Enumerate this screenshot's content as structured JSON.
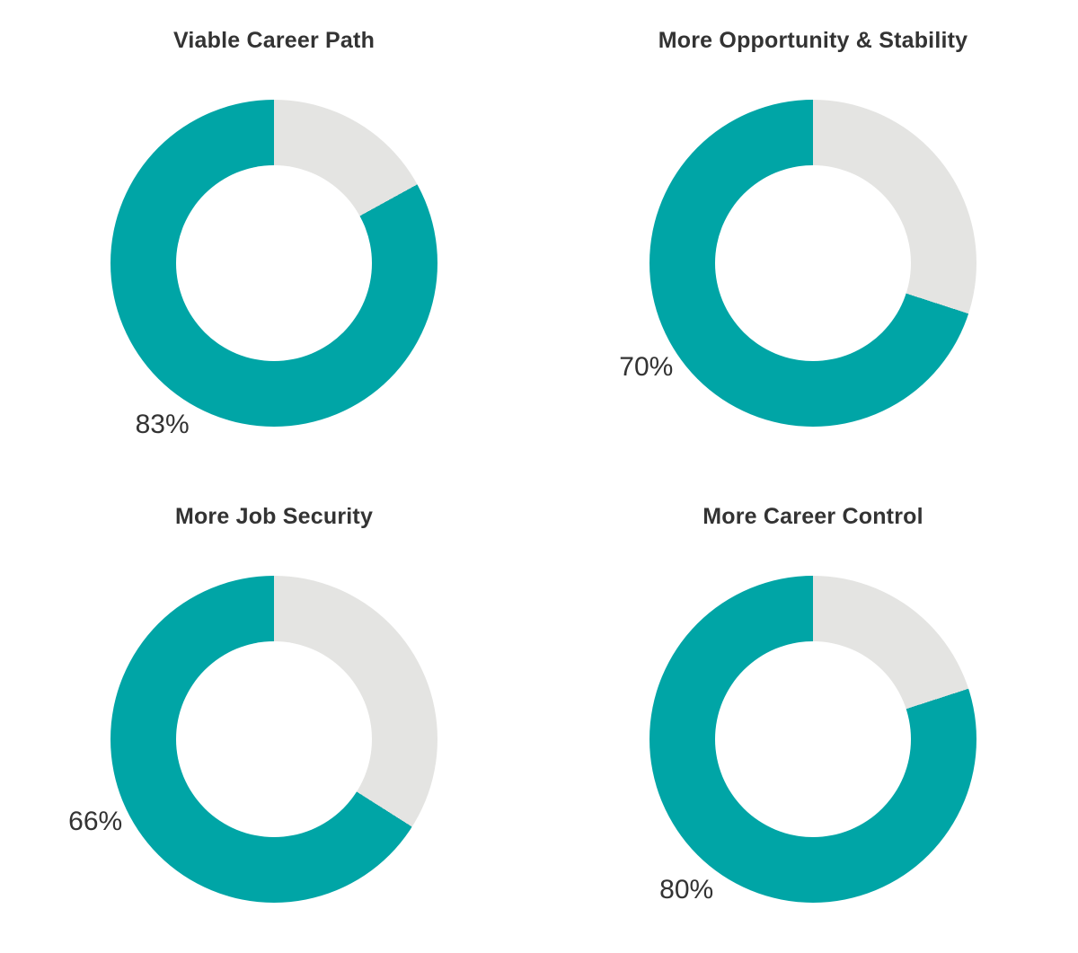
{
  "figure": {
    "background": "#ffffff",
    "text_color": "#333333"
  },
  "chart_data": [
    {
      "type": "pie",
      "subtype": "donut",
      "title": "Viable Career Path",
      "value_label": "83%",
      "slices": [
        {
          "name": "filled",
          "pct": 83,
          "color": "#00a5a6"
        },
        {
          "name": "remainder",
          "pct": 17,
          "color": "#e4e4e2"
        }
      ],
      "start": "12-oclock",
      "remainder_direction": "clockwise-from-top",
      "hole_ratio": 0.6,
      "legend": false
    },
    {
      "type": "pie",
      "subtype": "donut",
      "title": "More Opportunity & Stability",
      "value_label": "70%",
      "slices": [
        {
          "name": "filled",
          "pct": 70,
          "color": "#00a5a6"
        },
        {
          "name": "remainder",
          "pct": 30,
          "color": "#e4e4e2"
        }
      ],
      "start": "12-oclock",
      "remainder_direction": "clockwise-from-top",
      "hole_ratio": 0.6,
      "legend": false
    },
    {
      "type": "pie",
      "subtype": "donut",
      "title": "More Job Security",
      "value_label": "66%",
      "slices": [
        {
          "name": "filled",
          "pct": 66,
          "color": "#00a5a6"
        },
        {
          "name": "remainder",
          "pct": 34,
          "color": "#e4e4e2"
        }
      ],
      "start": "12-oclock",
      "remainder_direction": "clockwise-from-top",
      "hole_ratio": 0.6,
      "legend": false
    },
    {
      "type": "pie",
      "subtype": "donut",
      "title": "More Career Control",
      "value_label": "80%",
      "slices": [
        {
          "name": "filled",
          "pct": 80,
          "color": "#00a5a6"
        },
        {
          "name": "remainder",
          "pct": 20,
          "color": "#e4e4e2"
        }
      ],
      "start": "12-oclock",
      "remainder_direction": "clockwise-from-top",
      "hole_ratio": 0.6,
      "legend": false
    }
  ]
}
